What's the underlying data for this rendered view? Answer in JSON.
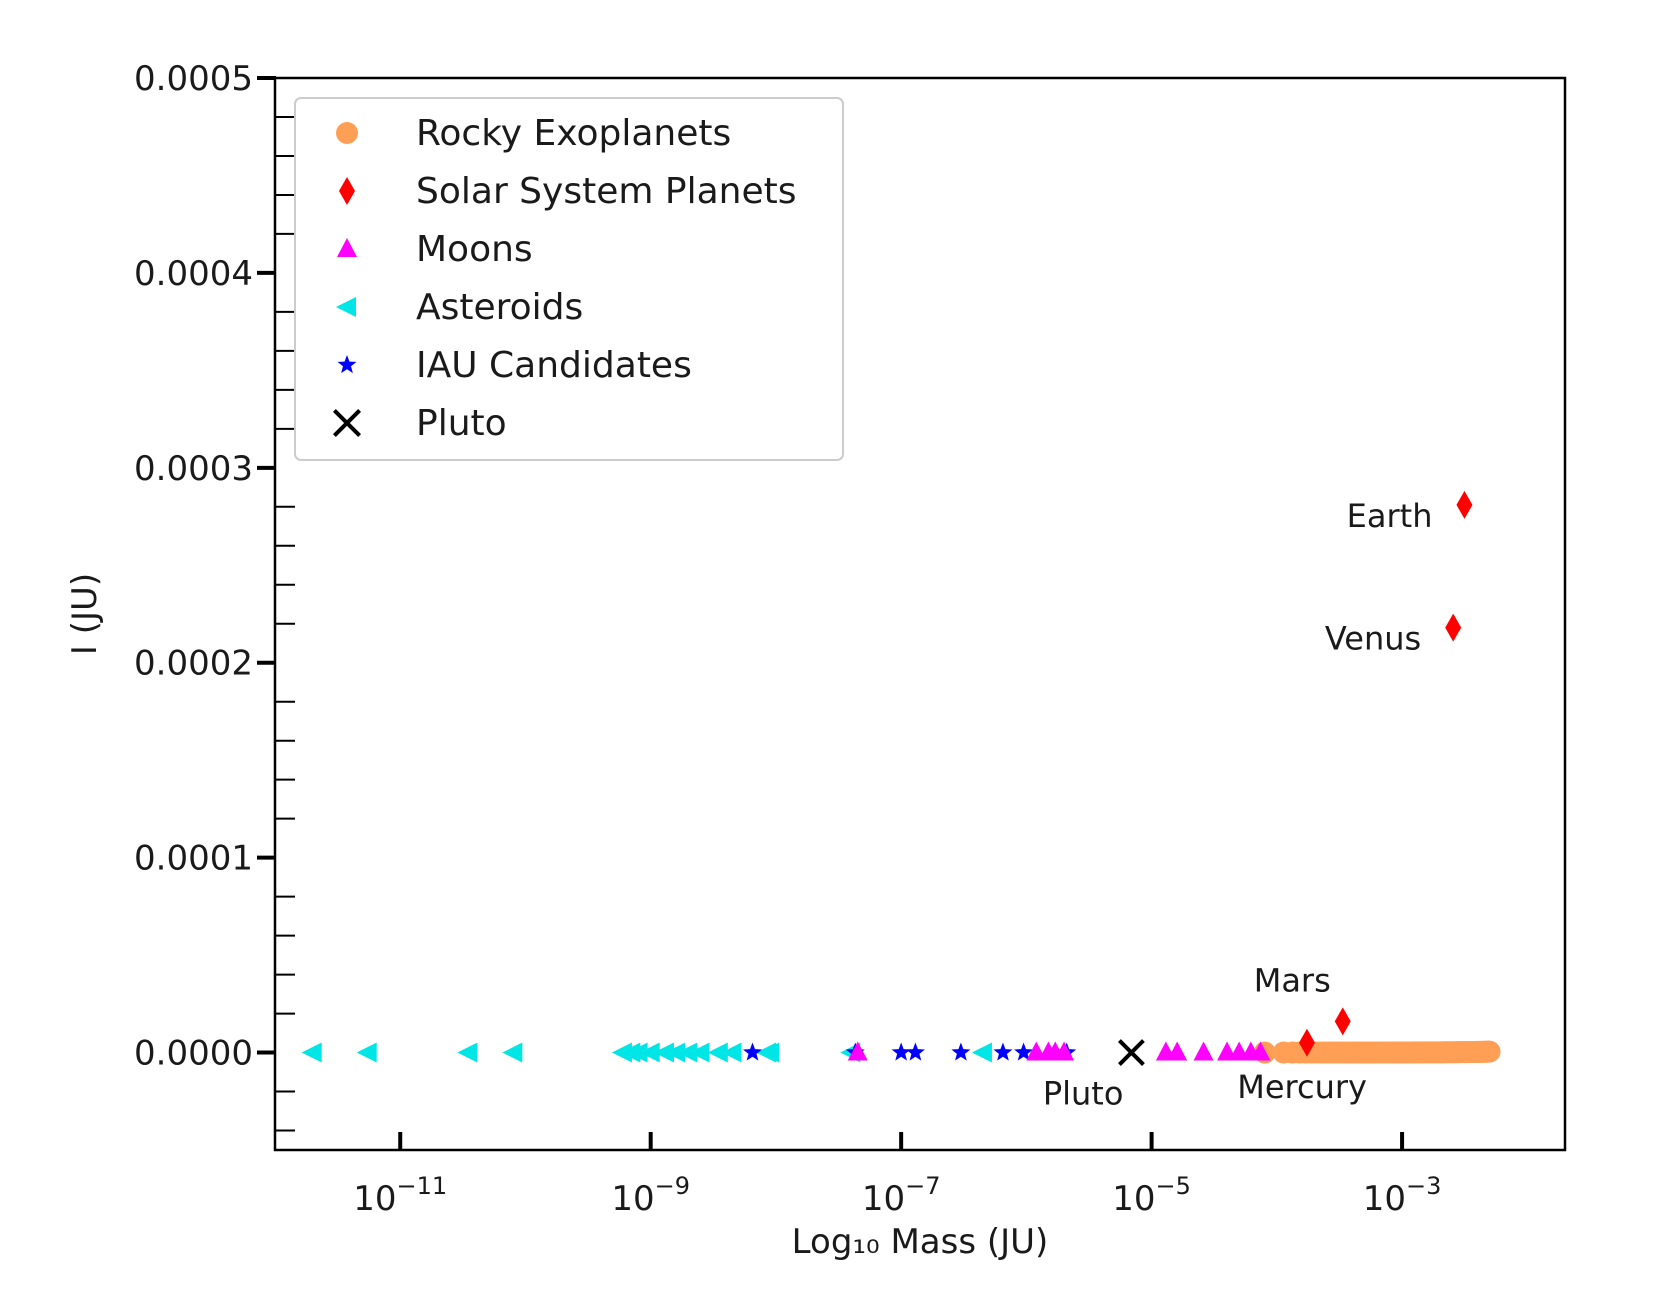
{
  "chart_data": {
    "type": "scatter",
    "xlabel": "Log₁₀ Mass (JU)",
    "ylabel": "I (JU)",
    "x_scale": "log",
    "xlim": [
      1e-12,
      0.02
    ],
    "ylim": [
      -5e-05,
      0.0005
    ],
    "x_ticks": [
      {
        "value": 1e-11,
        "base": "10",
        "exp": "−11"
      },
      {
        "value": 1e-09,
        "base": "10",
        "exp": "−9"
      },
      {
        "value": 1e-07,
        "base": "10",
        "exp": "−7"
      },
      {
        "value": 1e-05,
        "base": "10",
        "exp": "−5"
      },
      {
        "value": 0.001,
        "base": "10",
        "exp": "−3"
      }
    ],
    "y_ticks": [
      {
        "value": 0.0,
        "label": "0.0000"
      },
      {
        "value": 0.0001,
        "label": "0.0001"
      },
      {
        "value": 0.0002,
        "label": "0.0002"
      },
      {
        "value": 0.0003,
        "label": "0.0003"
      },
      {
        "value": 0.0004,
        "label": "0.0004"
      },
      {
        "value": 0.0005,
        "label": "0.0005"
      }
    ],
    "grid": false,
    "legend_position": "top-left",
    "series": [
      {
        "name": "Rocky Exoplanets",
        "marker": "circle",
        "color": "#ff9f55",
        "curve": {
          "k": 0.0013,
          "p": 1.5,
          "x_min": 8e-05,
          "x_max": 0.005,
          "n": 90
        }
      },
      {
        "name": "Solar System Planets",
        "marker": "diamond",
        "color": "#ff0000",
        "points": [
          [
            0.000174,
            5e-06
          ],
          [
            0.000336,
            1.6e-05
          ],
          [
            0.00256,
            0.000218
          ],
          [
            0.00315,
            0.000281
          ]
        ]
      },
      {
        "name": "Moons",
        "marker": "triangle-up",
        "color": "#ff00ff",
        "points": [
          [
            4.5e-08,
            0.0
          ],
          [
            1.2e-06,
            0.0
          ],
          [
            1.5e-06,
            0.0
          ],
          [
            1.7e-06,
            0.0
          ],
          [
            2e-06,
            0.0
          ],
          [
            1.3e-05,
            0.0
          ],
          [
            1.6e-05,
            0.0
          ],
          [
            2.6e-05,
            0.0
          ],
          [
            4e-05,
            0.0
          ],
          [
            5e-05,
            0.0
          ],
          [
            6.2e-05,
            0.0
          ],
          [
            7.4e-05,
            0.0
          ]
        ]
      },
      {
        "name": "Asteroids",
        "marker": "triangle-left",
        "color": "#00e5e5",
        "points": [
          [
            2e-12,
            0.0
          ],
          [
            5.5e-12,
            0.0
          ],
          [
            3.5e-11,
            0.0
          ],
          [
            8e-11,
            0.0
          ],
          [
            6e-10,
            0.0
          ],
          [
            7e-10,
            0.0
          ],
          [
            8e-10,
            0.0
          ],
          [
            1e-09,
            0.0
          ],
          [
            1.3e-09,
            0.0
          ],
          [
            1.6e-09,
            0.0
          ],
          [
            2e-09,
            0.0
          ],
          [
            2.5e-09,
            0.0
          ],
          [
            3.5e-09,
            0.0
          ],
          [
            4.5e-09,
            0.0
          ],
          [
            8.5e-09,
            0.0
          ],
          [
            9e-09,
            0.0
          ],
          [
            4e-08,
            0.0
          ],
          [
            4.5e-07,
            0.0
          ]
        ]
      },
      {
        "name": "IAU Candidates",
        "marker": "star",
        "color": "#0000ff",
        "points": [
          [
            6.5e-09,
            0.0
          ],
          [
            4.3e-08,
            0.0
          ],
          [
            1e-07,
            0.0
          ],
          [
            1.3e-07,
            0.0
          ],
          [
            3e-07,
            0.0
          ],
          [
            6.5e-07,
            0.0
          ],
          [
            9.5e-07,
            0.0
          ],
          [
            2.1e-06,
            0.0
          ]
        ]
      },
      {
        "name": "Pluto",
        "marker": "x",
        "color": "#000000",
        "points": [
          [
            6.9e-06,
            0.0
          ]
        ]
      }
    ],
    "annotations": [
      {
        "text": "Earth",
        "x": 0.00315,
        "y": 0.000281,
        "anchor": "left"
      },
      {
        "text": "Venus",
        "x": 0.00256,
        "y": 0.000218,
        "anchor": "left"
      },
      {
        "text": "Mars",
        "x": 0.000336,
        "y": 1.6e-05,
        "anchor": "above-left"
      },
      {
        "text": "Mercury",
        "x": 0.000174,
        "y": 5e-06,
        "anchor": "below"
      },
      {
        "text": "Pluto",
        "x": 6.9e-06,
        "y": 0.0,
        "anchor": "below-left"
      }
    ]
  }
}
